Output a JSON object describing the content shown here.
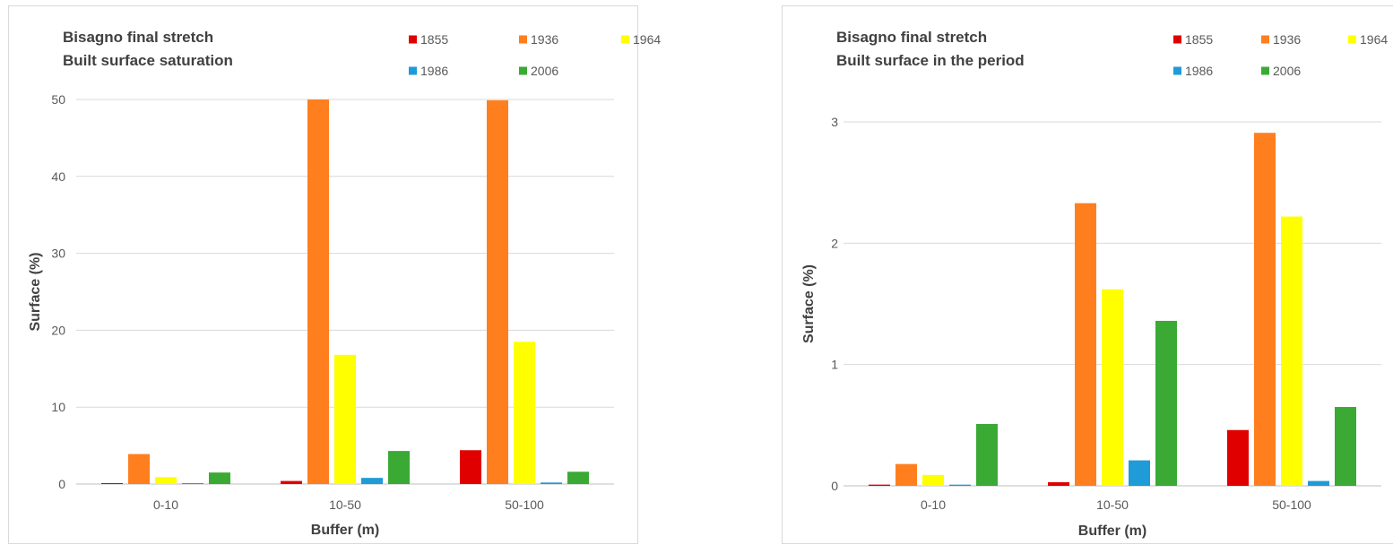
{
  "chart_data": [
    {
      "type": "bar",
      "title_lines": [
        "Bisagno final stretch",
        "Built surface saturation"
      ],
      "xlabel": "Buffer (m)",
      "ylabel": "Surface (%)",
      "categories": [
        "0-10",
        "10-50",
        "50-100"
      ],
      "ylim": [
        0,
        50
      ],
      "yticks": [
        "0",
        "10",
        "20",
        "30",
        "40",
        "50"
      ],
      "grid": true,
      "legend_position": "top-right",
      "series": [
        {
          "name": "1855",
          "color": "#e00000",
          "values": [
            0.1,
            0.4,
            4.4
          ]
        },
        {
          "name": "1936",
          "color": "#ff7f1f",
          "values": [
            3.9,
            50.0,
            49.9
          ]
        },
        {
          "name": "1964",
          "color": "#ffff00",
          "values": [
            0.9,
            16.8,
            18.5
          ]
        },
        {
          "name": "1986",
          "color": "#1f9bd7",
          "values": [
            0.1,
            0.8,
            0.2
          ]
        },
        {
          "name": "2006",
          "color": "#3aaa35",
          "values": [
            1.5,
            4.3,
            1.6
          ]
        }
      ]
    },
    {
      "type": "bar",
      "title_lines": [
        "Bisagno final stretch",
        "Built surface in the period"
      ],
      "xlabel": "Buffer (m)",
      "ylabel": "Surface (%)",
      "categories": [
        "0-10",
        "10-50",
        "50-100"
      ],
      "ylim": [
        0,
        3
      ],
      "yticks": [
        "0",
        "1",
        "2",
        "3"
      ],
      "grid": true,
      "legend_position": "top-right",
      "series": [
        {
          "name": "1855",
          "color": "#e00000",
          "values": [
            0.01,
            0.03,
            0.46
          ]
        },
        {
          "name": "1936",
          "color": "#ff7f1f",
          "values": [
            0.18,
            2.33,
            2.91
          ]
        },
        {
          "name": "1964",
          "color": "#ffff00",
          "values": [
            0.09,
            1.62,
            2.22
          ]
        },
        {
          "name": "1986",
          "color": "#1f9bd7",
          "values": [
            0.01,
            0.21,
            0.04
          ]
        },
        {
          "name": "2006",
          "color": "#3aaa35",
          "values": [
            0.51,
            1.36,
            0.65
          ]
        }
      ]
    }
  ]
}
